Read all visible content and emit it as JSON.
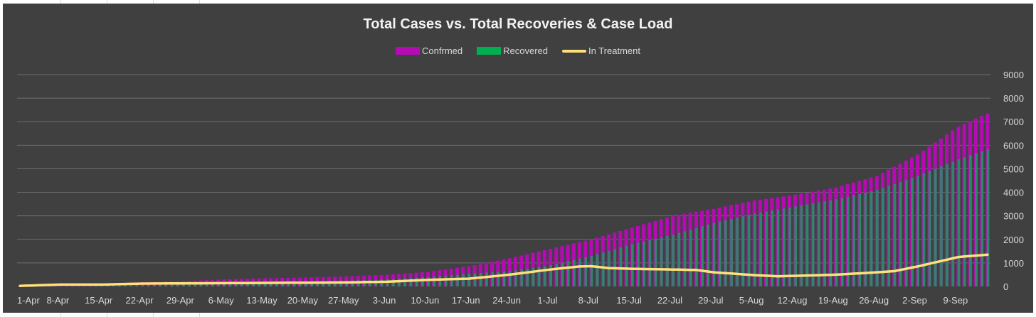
{
  "chart_data": {
    "type": "bar",
    "title": "Total Cases vs. Total Recoveries & Case Load",
    "xlabel": "",
    "ylabel": "",
    "ylim": [
      0,
      9000
    ],
    "yticks": [
      "9000",
      "8000",
      "7000",
      "6000",
      "5000",
      "4000",
      "3000",
      "2000",
      "1000",
      "0"
    ],
    "xticks": [
      "1-Apr",
      "8-Apr",
      "15-Apr",
      "22-Apr",
      "29-Apr",
      "6-May",
      "13-May",
      "20-May",
      "27-May",
      "3-Jun",
      "10-Jun",
      "17-Jun",
      "24-Jun",
      "1-Jul",
      "8-Jul",
      "15-Jul",
      "22-Jul",
      "29-Jul",
      "5-Aug",
      "12-Aug",
      "19-Aug",
      "26-Aug",
      "2-Sep",
      "9-Sep"
    ],
    "start_date": "1-Apr",
    "grid": true,
    "legend_position": "top",
    "series": [
      {
        "name": "Confrmed",
        "kind": "bar",
        "color": "#b40bb4",
        "anchors": [
          [
            0,
            30
          ],
          [
            7,
            50
          ],
          [
            14,
            100
          ],
          [
            21,
            180
          ],
          [
            28,
            230
          ],
          [
            35,
            300
          ],
          [
            42,
            350
          ],
          [
            49,
            380
          ],
          [
            56,
            430
          ],
          [
            63,
            500
          ],
          [
            70,
            620
          ],
          [
            77,
            860
          ],
          [
            84,
            1200
          ],
          [
            91,
            1600
          ],
          [
            98,
            2000
          ],
          [
            105,
            2500
          ],
          [
            112,
            3000
          ],
          [
            119,
            3300
          ],
          [
            126,
            3650
          ],
          [
            133,
            3900
          ],
          [
            140,
            4200
          ],
          [
            147,
            4700
          ],
          [
            154,
            5600
          ],
          [
            161,
            6800
          ],
          [
            166,
            7350
          ]
        ]
      },
      {
        "name": "Recovered",
        "kind": "bar",
        "color": "#00b050",
        "anchors": [
          [
            0,
            5
          ],
          [
            7,
            10
          ],
          [
            14,
            30
          ],
          [
            21,
            60
          ],
          [
            28,
            90
          ],
          [
            35,
            130
          ],
          [
            42,
            170
          ],
          [
            49,
            200
          ],
          [
            56,
            240
          ],
          [
            63,
            300
          ],
          [
            70,
            400
          ],
          [
            77,
            540
          ],
          [
            84,
            650
          ],
          [
            91,
            900
          ],
          [
            98,
            1300
          ],
          [
            105,
            1800
          ],
          [
            112,
            2200
          ],
          [
            119,
            2700
          ],
          [
            126,
            3100
          ],
          [
            133,
            3400
          ],
          [
            140,
            3700
          ],
          [
            147,
            4100
          ],
          [
            154,
            4700
          ],
          [
            161,
            5400
          ],
          [
            166,
            5820
          ]
        ]
      },
      {
        "name": "In Treatment",
        "kind": "line",
        "color": "#ffe07a",
        "anchors": [
          [
            0,
            25
          ],
          [
            7,
            80
          ],
          [
            14,
            80
          ],
          [
            21,
            120
          ],
          [
            28,
            130
          ],
          [
            35,
            140
          ],
          [
            42,
            150
          ],
          [
            49,
            160
          ],
          [
            56,
            170
          ],
          [
            63,
            200
          ],
          [
            70,
            280
          ],
          [
            77,
            330
          ],
          [
            84,
            500
          ],
          [
            91,
            720
          ],
          [
            96,
            850
          ],
          [
            98,
            860
          ],
          [
            101,
            780
          ],
          [
            105,
            750
          ],
          [
            112,
            720
          ],
          [
            116,
            700
          ],
          [
            119,
            600
          ],
          [
            126,
            480
          ],
          [
            130,
            430
          ],
          [
            133,
            450
          ],
          [
            140,
            500
          ],
          [
            147,
            600
          ],
          [
            150,
            650
          ],
          [
            154,
            850
          ],
          [
            161,
            1250
          ],
          [
            166,
            1350
          ]
        ]
      }
    ],
    "days": 167
  }
}
